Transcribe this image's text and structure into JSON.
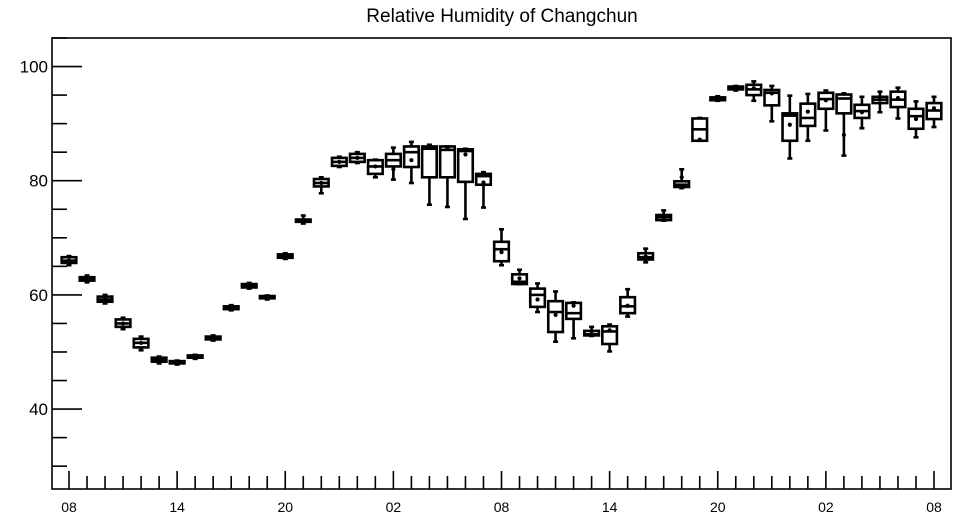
{
  "chart_data": {
    "type": "box",
    "title": "Relative Humidity of Changchun",
    "xlabel": "",
    "ylabel": "",
    "ylim": [
      26,
      105
    ],
    "y_major_ticks": [
      40,
      60,
      80,
      100
    ],
    "y_minor_step": 5,
    "x_tick_labels": [
      "08",
      "14",
      "20",
      "02",
      "08",
      "14",
      "20",
      "02",
      "08"
    ],
    "x_tick_label_hours": [
      0,
      6,
      12,
      18,
      24,
      30,
      36,
      42,
      48
    ],
    "boxes": [
      {
        "hour": 0,
        "whislo": 65.2,
        "q1": 65.6,
        "med": 66.0,
        "q3": 66.6,
        "whishi": 66.8,
        "mean": 66.0
      },
      {
        "hour": 1,
        "whislo": 62.2,
        "q1": 62.5,
        "med": 62.8,
        "q3": 63.1,
        "whishi": 63.4,
        "mean": 62.8
      },
      {
        "hour": 2,
        "whislo": 58.5,
        "q1": 58.8,
        "med": 59.2,
        "q3": 59.7,
        "whishi": 60.0,
        "mean": 59.2
      },
      {
        "hour": 3,
        "whislo": 54.0,
        "q1": 54.4,
        "med": 55.0,
        "q3": 55.7,
        "whishi": 56.0,
        "mean": 55.0
      },
      {
        "hour": 4,
        "whislo": 50.3,
        "q1": 50.8,
        "med": 51.6,
        "q3": 52.3,
        "whishi": 52.7,
        "mean": 51.6
      },
      {
        "hour": 5,
        "whislo": 48.0,
        "q1": 48.3,
        "med": 48.7,
        "q3": 49.0,
        "whishi": 49.2,
        "mean": 48.7
      },
      {
        "hour": 6,
        "whislo": 47.8,
        "q1": 48.0,
        "med": 48.2,
        "q3": 48.4,
        "whishi": 48.5,
        "mean": 48.2
      },
      {
        "hour": 7,
        "whislo": 48.8,
        "q1": 49.0,
        "med": 49.2,
        "q3": 49.4,
        "whishi": 49.5,
        "mean": 49.2
      },
      {
        "hour": 8,
        "whislo": 52.0,
        "q1": 52.2,
        "med": 52.5,
        "q3": 52.7,
        "whishi": 52.9,
        "mean": 52.5
      },
      {
        "hour": 9,
        "whislo": 57.3,
        "q1": 57.5,
        "med": 57.7,
        "q3": 58.0,
        "whishi": 58.2,
        "mean": 57.7
      },
      {
        "hour": 10,
        "whislo": 61.1,
        "q1": 61.3,
        "med": 61.6,
        "q3": 61.9,
        "whishi": 62.1,
        "mean": 61.6
      },
      {
        "hour": 11,
        "whislo": 59.2,
        "q1": 59.4,
        "med": 59.6,
        "q3": 59.8,
        "whishi": 59.9,
        "mean": 59.6
      },
      {
        "hour": 12,
        "whislo": 66.3,
        "q1": 66.5,
        "med": 66.8,
        "q3": 67.1,
        "whishi": 67.3,
        "mean": 66.8
      },
      {
        "hour": 13,
        "whislo": 72.5,
        "q1": 72.8,
        "med": 73.0,
        "q3": 73.2,
        "whishi": 73.9,
        "mean": 73.0
      },
      {
        "hour": 14,
        "whislo": 77.8,
        "q1": 79.0,
        "med": 79.6,
        "q3": 80.3,
        "whishi": 80.6,
        "mean": 79.6
      },
      {
        "hour": 15,
        "whislo": 82.4,
        "q1": 82.6,
        "med": 83.3,
        "q3": 84.0,
        "whishi": 84.2,
        "mean": 83.3
      },
      {
        "hour": 16,
        "whislo": 83.1,
        "q1": 83.3,
        "med": 84.0,
        "q3": 84.7,
        "whishi": 85.0,
        "mean": 84.0
      },
      {
        "hour": 17,
        "whislo": 80.6,
        "q1": 81.2,
        "med": 82.5,
        "q3": 83.6,
        "whishi": 83.7,
        "mean": 82.5
      },
      {
        "hour": 18,
        "whislo": 80.2,
        "q1": 82.5,
        "med": 83.6,
        "q3": 84.7,
        "whishi": 85.8,
        "mean": 82.0
      },
      {
        "hour": 19,
        "whislo": 79.6,
        "q1": 82.4,
        "med": 85.0,
        "q3": 86.0,
        "whishi": 86.8,
        "mean": 83.6
      },
      {
        "hour": 20,
        "whislo": 75.8,
        "q1": 80.6,
        "med": 85.6,
        "q3": 86.0,
        "whishi": 86.3,
        "mean": 85.8
      },
      {
        "hour": 21,
        "whislo": 75.4,
        "q1": 80.6,
        "med": 85.4,
        "q3": 86.0,
        "whishi": 86.0,
        "mean": 85.7
      },
      {
        "hour": 22,
        "whislo": 73.3,
        "q1": 79.8,
        "med": 85.2,
        "q3": 85.5,
        "whishi": 85.6,
        "mean": 84.6
      },
      {
        "hour": 23,
        "whislo": 75.3,
        "q1": 79.3,
        "med": 80.8,
        "q3": 81.2,
        "whishi": 81.5,
        "mean": 79.7
      },
      {
        "hour": 24,
        "whislo": 65.2,
        "q1": 65.9,
        "med": 68.0,
        "q3": 69.3,
        "whishi": 71.5,
        "mean": 67.5
      },
      {
        "hour": 25,
        "whislo": 61.9,
        "q1": 61.9,
        "med": 62.3,
        "q3": 63.6,
        "whishi": 64.4,
        "mean": 62.9
      },
      {
        "hour": 26,
        "whislo": 57.0,
        "q1": 57.9,
        "med": 60.0,
        "q3": 61.1,
        "whishi": 62.0,
        "mean": 59.2
      },
      {
        "hour": 27,
        "whislo": 51.8,
        "q1": 53.5,
        "med": 57.0,
        "q3": 58.9,
        "whishi": 60.6,
        "mean": 56.5
      },
      {
        "hour": 28,
        "whislo": 52.4,
        "q1": 55.8,
        "med": 56.8,
        "q3": 58.6,
        "whishi": 58.7,
        "mean": 58.1
      },
      {
        "hour": 29,
        "whislo": 52.8,
        "q1": 52.9,
        "med": 53.1,
        "q3": 53.7,
        "whishi": 54.4,
        "mean": 53.2
      },
      {
        "hour": 30,
        "whislo": 50.1,
        "q1": 51.4,
        "med": 53.6,
        "q3": 54.5,
        "whishi": 54.8,
        "mean": 53.8
      },
      {
        "hour": 31,
        "whislo": 56.2,
        "q1": 56.8,
        "med": 58.0,
        "q3": 59.6,
        "whishi": 61.0,
        "mean": 58.1
      },
      {
        "hour": 32,
        "whislo": 65.7,
        "q1": 66.2,
        "med": 66.6,
        "q3": 67.3,
        "whishi": 68.1,
        "mean": 66.7
      },
      {
        "hour": 33,
        "whislo": 73.0,
        "q1": 73.1,
        "med": 73.6,
        "q3": 74.0,
        "whishi": 74.8,
        "mean": 73.5
      },
      {
        "hour": 34,
        "whislo": 78.7,
        "q1": 78.9,
        "med": 79.3,
        "q3": 79.9,
        "whishi": 82.0,
        "mean": 80.6
      },
      {
        "hour": 35,
        "whislo": 87.0,
        "q1": 87.0,
        "med": 89.0,
        "q3": 90.9,
        "whishi": 91.0,
        "mean": 87.2
      },
      {
        "hour": 36,
        "whislo": 94.0,
        "q1": 94.1,
        "med": 94.3,
        "q3": 94.6,
        "whishi": 94.8,
        "mean": 94.3
      },
      {
        "hour": 37,
        "whislo": 95.8,
        "q1": 96.0,
        "med": 96.2,
        "q3": 96.5,
        "whishi": 96.6,
        "mean": 96.2
      },
      {
        "hour": 38,
        "whislo": 94.0,
        "q1": 95.0,
        "med": 96.0,
        "q3": 96.8,
        "whishi": 97.4,
        "mean": 96.2
      },
      {
        "hour": 39,
        "whislo": 90.4,
        "q1": 93.2,
        "med": 95.4,
        "q3": 95.9,
        "whishi": 96.6,
        "mean": 95.3
      },
      {
        "hour": 40,
        "whislo": 83.9,
        "q1": 87.0,
        "med": 91.4,
        "q3": 91.8,
        "whishi": 94.9,
        "mean": 89.8
      },
      {
        "hour": 41,
        "whislo": 87.0,
        "q1": 89.6,
        "med": 91.0,
        "q3": 93.5,
        "whishi": 95.2,
        "mean": 92.1
      },
      {
        "hour": 42,
        "whislo": 88.8,
        "q1": 92.6,
        "med": 94.3,
        "q3": 95.4,
        "whishi": 95.8,
        "mean": 94.1
      },
      {
        "hour": 43,
        "whislo": 84.4,
        "q1": 91.8,
        "med": 94.4,
        "q3": 95.1,
        "whishi": 95.3,
        "mean": 88.0
      },
      {
        "hour": 44,
        "whislo": 89.2,
        "q1": 91.0,
        "med": 92.2,
        "q3": 93.3,
        "whishi": 94.7,
        "mean": 92.0
      },
      {
        "hour": 45,
        "whislo": 92.0,
        "q1": 93.6,
        "med": 94.2,
        "q3": 94.7,
        "whishi": 95.6,
        "mean": 94.2
      },
      {
        "hour": 46,
        "whislo": 90.9,
        "q1": 92.9,
        "med": 94.2,
        "q3": 95.6,
        "whishi": 96.3,
        "mean": 94.5
      },
      {
        "hour": 47,
        "whislo": 87.6,
        "q1": 89.1,
        "med": 91.3,
        "q3": 92.6,
        "whishi": 93.9,
        "mean": 90.8
      },
      {
        "hour": 48,
        "whislo": 89.4,
        "q1": 90.8,
        "med": 92.3,
        "q3": 93.6,
        "whishi": 94.7,
        "mean": 92.7
      }
    ],
    "grid": false,
    "legend": "none"
  }
}
